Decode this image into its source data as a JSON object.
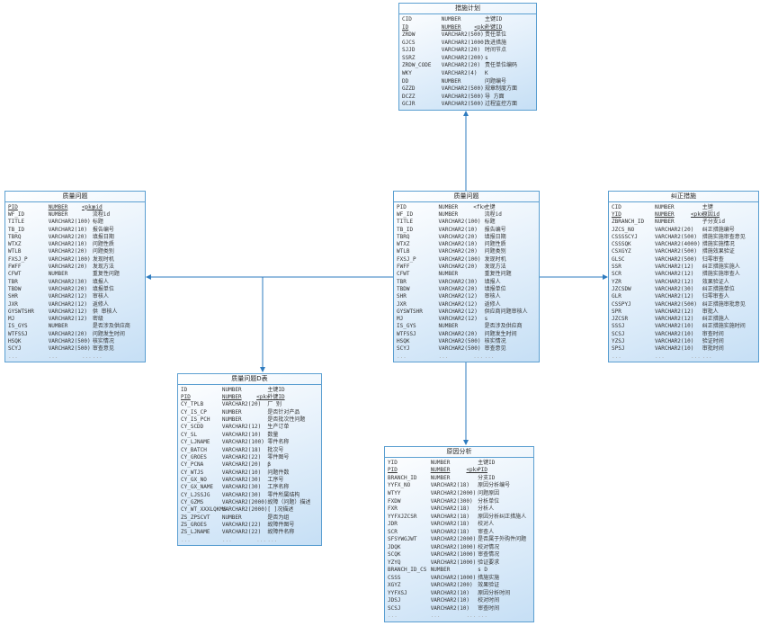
{
  "tables": [
    {
      "id": "measure-plan",
      "title": "措施计划",
      "rows": [
        [
          "CID",
          "NUMBER",
          "",
          "主键ID",
          false
        ],
        [
          "ID",
          "NUMBER",
          "<pk>",
          "外键ID",
          true
        ],
        [
          "ZRDW",
          "VARCHAR2(500)",
          "",
          "责任单位",
          false
        ],
        [
          "GJCS",
          "VARCHAR2(1000)",
          "",
          "改进措施",
          false
        ],
        [
          "SJJD",
          "VARCHAR2(20)",
          "",
          "时间节点",
          false
        ],
        [
          "SSRZ",
          "VARCHAR2(200)",
          "",
          "s",
          false
        ],
        [
          "ZRDW_CODE",
          "VARCHAR2(20)",
          "",
          "责任单位编码",
          false
        ],
        [
          "WKY",
          "VARCHAR2(4)",
          "",
          "K",
          false
        ],
        [
          "DD",
          "NUMBER",
          "",
          "问题编号",
          false
        ],
        [
          "GZZD",
          "VARCHAR2(500)",
          "",
          "规章制度方面",
          false
        ],
        [
          "DCZZ",
          "VARCHAR2(500)",
          "",
          "导    方面",
          false
        ],
        [
          "GCJR",
          "VARCHAR2(500)",
          "",
          "过程监控方面",
          false
        ]
      ],
      "ellipsis": false
    },
    {
      "id": "quality-issue-left",
      "title": "质量问题",
      "rows": [
        [
          "PID",
          "NUMBER",
          "<pk>",
          "pid",
          true
        ],
        [
          "WF_ID",
          "NUMBER",
          "",
          "流程id",
          false
        ],
        [
          "TITLE",
          "VARCHAR2(100)",
          "",
          "标题",
          false
        ],
        [
          "TB_ID",
          "VARCHAR2(10)",
          "",
          "报告编号",
          false
        ],
        [
          "TBRQ",
          "VARCHAR2(20)",
          "",
          "填报日期",
          false
        ],
        [
          "WTXZ",
          "VARCHAR2(10)",
          "",
          "问题性质",
          false
        ],
        [
          "WTLB",
          "VARCHAR2(20)",
          "",
          "问题类别",
          false
        ],
        [
          "FXSJ_P",
          "VARCHAR2(100)",
          "",
          "发现时机",
          false
        ],
        [
          "FWFF",
          "VARCHAR2(20)",
          "",
          "发现方法",
          false
        ],
        [
          "CFWT",
          "NUMBER",
          "",
          "重复性问题",
          false
        ],
        [
          "TBR",
          "VARCHAR2(30)",
          "",
          "填报人",
          false
        ],
        [
          "TBDW",
          "VARCHAR2(20)",
          "",
          "填报单位",
          false
        ],
        [
          "SHR",
          "VARCHAR2(12)",
          "",
          "审核人",
          false
        ],
        [
          "JXR",
          "VARCHAR2(12)",
          "",
          "返修人",
          false
        ],
        [
          "GYSWTSHR",
          "VARCHAR2(12)",
          "",
          "供        审核人",
          false
        ],
        [
          "MJ",
          "VARCHAR2(12)",
          "",
          "密级",
          false
        ],
        [
          "IS_GYS",
          "NUMBER",
          "",
          "是否涉及供应商",
          false
        ],
        [
          "WTFSSJ",
          "VARCHAR2(20)",
          "",
          "问题发生时间",
          false
        ],
        [
          "HSQK",
          "VARCHAR2(500)",
          "",
          "核实情况",
          false
        ],
        [
          "SCYJ",
          "VARCHAR2(500)",
          "",
          "审查意见",
          false
        ]
      ],
      "ellipsis": true
    },
    {
      "id": "quality-issue-center",
      "title": "质量问题",
      "rows": [
        [
          "PID",
          "NUMBER",
          "<fk>",
          "主键",
          false
        ],
        [
          "WF_ID",
          "NUMBER",
          "",
          "流程id",
          false
        ],
        [
          "TITLE",
          "VARCHAR2(100)",
          "",
          "标题",
          false
        ],
        [
          "TB_ID",
          "VARCHAR2(10)",
          "",
          "报告编号",
          false
        ],
        [
          "TBRQ",
          "VARCHAR2(20)",
          "",
          "填报日期",
          false
        ],
        [
          "WTXZ",
          "VARCHAR2(10)",
          "",
          "问题性质",
          false
        ],
        [
          "WTLB",
          "VARCHAR2(20)",
          "",
          "问题类别",
          false
        ],
        [
          "FXSJ_P",
          "VARCHAR2(100)",
          "",
          "发现时机",
          false
        ],
        [
          "FWFF",
          "VARCHAR2(20)",
          "",
          "发现方法",
          false
        ],
        [
          "CFWT",
          "NUMBER",
          "",
          "重复性问题",
          false
        ],
        [
          "TBR",
          "VARCHAR2(30)",
          "",
          "填报人",
          false
        ],
        [
          "TBDW",
          "VARCHAR2(20)",
          "",
          "填报单位",
          false
        ],
        [
          "SHR",
          "VARCHAR2(12)",
          "",
          "审核人",
          false
        ],
        [
          "JXR",
          "VARCHAR2(12)",
          "",
          "返修人",
          false
        ],
        [
          "GYSWTSHR",
          "VARCHAR2(12)",
          "",
          "供应商问题审核人",
          false
        ],
        [
          "MJ",
          "VARCHAR2(12)",
          "",
          "s",
          false
        ],
        [
          "IS_GYS",
          "NUMBER",
          "",
          "是否涉及供应商",
          false
        ],
        [
          "WTFSSJ",
          "VARCHAR2(20)",
          "",
          "问题发生时间",
          false
        ],
        [
          "HSQK",
          "VARCHAR2(500)",
          "",
          "核实情况",
          false
        ],
        [
          "SCYJ",
          "VARCHAR2(500)",
          "",
          "审查意见",
          false
        ]
      ],
      "ellipsis": true
    },
    {
      "id": "corrective-action",
      "title": "纠正措施",
      "rows": [
        [
          "CID",
          "NUMBER",
          "",
          "主键",
          false
        ],
        [
          "YID",
          "NUMBER",
          "<pk>",
          "原因id",
          true
        ],
        [
          "ZBRANCH_ID",
          "NUMBER",
          "",
          "子分支id",
          false
        ],
        [
          "JZCS_NO",
          "VARCHAR2(20)",
          "",
          "纠正措施编号",
          false
        ],
        [
          "CSSSSCYJ",
          "VARCHAR2(500)",
          "",
          "措施实施审查意见",
          false
        ],
        [
          "CSSSQK",
          "VARCHAR2(4000)",
          "",
          "措施实施情况",
          false
        ],
        [
          "CSXGYZ",
          "VARCHAR2(500)",
          "",
          "措施效果验证",
          false
        ],
        [
          "GLSC",
          "VARCHAR2(500)",
          "",
          "归零审查",
          false
        ],
        [
          "SSR",
          "VARCHAR2(12)",
          "",
          "纠正措施实施人",
          false
        ],
        [
          "SCR",
          "VARCHAR2(12)",
          "",
          "措施实施审查人",
          false
        ],
        [
          "YZR",
          "VARCHAR2(12)",
          "",
          "效果验证人",
          false
        ],
        [
          "JZCSDW",
          "VARCHAR2(30)",
          "",
          "纠正措施单位",
          false
        ],
        [
          "GLR",
          "VARCHAR2(12)",
          "",
          "归零审查人",
          false
        ],
        [
          "CSSPYJ",
          "VARCHAR2(500)",
          "",
          "纠正措施审批意见",
          false
        ],
        [
          "SPR",
          "VARCHAR2(12)",
          "",
          "审批人",
          false
        ],
        [
          "JZCSR",
          "VARCHAR2(12)",
          "",
          "纠正措施人",
          false
        ],
        [
          "SSSJ",
          "VARCHAR2(10)",
          "",
          "纠正措施实施时间",
          false
        ],
        [
          "SCSJ",
          "VARCHAR2(10)",
          "",
          "审查时间",
          false
        ],
        [
          "YZSJ",
          "VARCHAR2(10)",
          "",
          "验证时间",
          false
        ],
        [
          "SPSJ",
          "VARCHAR2(10)",
          "",
          "审批时间",
          false
        ]
      ],
      "ellipsis": true
    },
    {
      "id": "quality-issue-detail",
      "title": "质量问题D表",
      "rows": [
        [
          "ID",
          "NUMBER",
          "",
          "主键ID",
          false
        ],
        [
          "PID",
          "NUMBER",
          "<pk>",
          "外键ID",
          true
        ],
        [
          "CY_TPLB",
          "VARCHAR2(20)",
          "",
          "厂      别",
          false
        ],
        [
          "CY_IS_CP",
          "NUMBER",
          "",
          "是否针对产品",
          false
        ],
        [
          "CY_IS_PCH",
          "NUMBER",
          "",
          "是否批次性问题",
          false
        ],
        [
          "CY_SCDD",
          "VARCHAR2(12)",
          "",
          "生产订单",
          false
        ],
        [
          "CY_SL",
          "VARCHAR2(10)",
          "",
          "数量",
          false
        ],
        [
          "CY_LJNAME",
          "VARCHAR2(100)",
          "",
          "零件名称",
          false
        ],
        [
          "CY_BATCH",
          "VARCHAR2(18)",
          "",
          "批次号",
          false
        ],
        [
          "CY_GROES",
          "VARCHAR2(22)",
          "",
          "零件图号",
          false
        ],
        [
          "CY_PCNA",
          "VARCHAR2(20)",
          "",
          "β",
          false
        ],
        [
          "CY_WTJS",
          "VARCHAR2(10)",
          "",
          "问题件数",
          false
        ],
        [
          "CY_GX_NO",
          "VARCHAR2(30)",
          "",
          "工序号",
          false
        ],
        [
          "CY_GX_NAME",
          "VARCHAR2(30)",
          "",
          "工序名称",
          false
        ],
        [
          "CY_LJSSJG",
          "VARCHAR2(30)",
          "",
          "零件所属结构",
          false
        ],
        [
          "CY_GZMS",
          "VARCHAR2(2000)",
          "",
          "故障（问题）描述",
          false
        ],
        [
          "CY_WT_XXXLQKMS",
          "VARCHAR2(2000)",
          "",
          "[      ]况描述",
          false
        ],
        [
          "ZS_ZPSCVT",
          "NUMBER",
          "",
          "是否为组",
          false
        ],
        [
          "ZS_GROES",
          "VARCHAR2(22)",
          "",
          "故障件图号",
          false
        ],
        [
          "ZS_LJNAME",
          "VARCHAR2(22)",
          "",
          "故障件名称",
          false
        ]
      ],
      "ellipsis": true
    },
    {
      "id": "cause-analysis",
      "title": "原因分析",
      "rows": [
        [
          "YID",
          "NUMBER",
          "",
          "主键ID",
          false
        ],
        [
          "PID",
          "NUMBER",
          "<pk>",
          "PID",
          true
        ],
        [
          "BRANCH_ID",
          "NUMBER",
          "",
          "分支ID",
          false
        ],
        [
          "YYFX_NO",
          "VARCHAR2(18)",
          "",
          "原因分析编号",
          false
        ],
        [
          "WTYY",
          "VARCHAR2(2000)",
          "",
          "问题原因",
          false
        ],
        [
          "FXDW",
          "VARCHAR2(300)",
          "",
          "分析单位",
          false
        ],
        [
          "FXR",
          "VARCHAR2(18)",
          "",
          "分析人",
          false
        ],
        [
          "YYFXJZCSR",
          "VARCHAR2(18)",
          "",
          "原因分析纠正措施人",
          false
        ],
        [
          "JDR",
          "VARCHAR2(18)",
          "",
          "校对人",
          false
        ],
        [
          "SCR",
          "VARCHAR2(18)",
          "",
          "审查人",
          false
        ],
        [
          "SFSYWGJWT",
          "VARCHAR2(2000)",
          "",
          "是否属于外购件问题",
          false
        ],
        [
          "JDQK",
          "VARCHAR2(1000)",
          "",
          "校对情况",
          false
        ],
        [
          "SCQK",
          "VARCHAR2(1000)",
          "",
          "审查情况",
          false
        ],
        [
          "YZYQ",
          "VARCHAR2(1000)",
          "",
          "验证要求",
          false
        ],
        [
          "BRANCH_ID_CS",
          "NUMBER",
          "",
          "s      D",
          false
        ],
        [
          "CSSS",
          "VARCHAR2(1000)",
          "",
          "措施实施",
          false
        ],
        [
          "XGYZ",
          "VARCHAR2(200)",
          "",
          "效果验证",
          false
        ],
        [
          "YYFXSJ",
          "VARCHAR2(10)",
          "",
          "原因分析时间",
          false
        ],
        [
          "JDSJ",
          "VARCHAR2(10)",
          "",
          "校对时间",
          false
        ],
        [
          "SCSJ",
          "VARCHAR2(10)",
          "",
          "审查时间",
          false
        ]
      ],
      "ellipsis": true
    }
  ],
  "ellipsis_text": "...",
  "colors": {
    "border": "#5b9fd1",
    "connector": "#2e7bbf",
    "fill_end": "#c6dff5"
  }
}
